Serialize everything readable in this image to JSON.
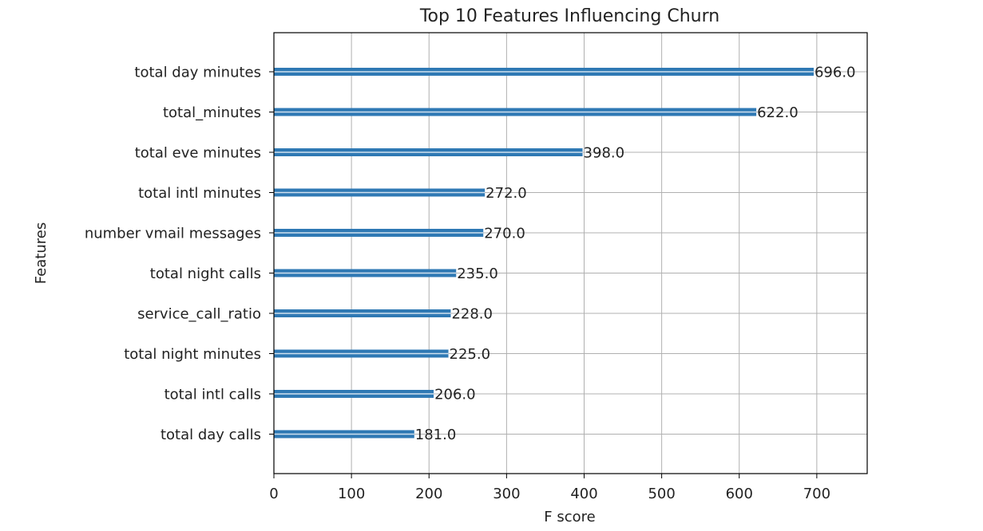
{
  "chart_data": {
    "type": "bar",
    "orientation": "horizontal",
    "title": "Top 10 Features Influencing Churn",
    "xlabel": "F score",
    "ylabel": "Features",
    "xlim": [
      0,
      765
    ],
    "xticks": [
      0,
      100,
      200,
      300,
      400,
      500,
      600,
      700
    ],
    "grid": true,
    "categories": [
      "total day minutes",
      "total_minutes",
      "total eve minutes",
      "total intl minutes",
      "number vmail messages",
      "total night calls",
      "service_call_ratio",
      "total night minutes",
      "total intl calls",
      "total day calls"
    ],
    "values": [
      696.0,
      622.0,
      398.0,
      272.0,
      270.0,
      235.0,
      228.0,
      225.0,
      206.0,
      181.0
    ],
    "value_labels": [
      "696.0",
      "622.0",
      "398.0",
      "272.0",
      "270.0",
      "235.0",
      "228.0",
      "225.0",
      "206.0",
      "181.0"
    ],
    "colors": {
      "bar": "#2f79b4",
      "grid": "#b0b0b0",
      "axis": "#000000",
      "text": "#222222"
    }
  }
}
